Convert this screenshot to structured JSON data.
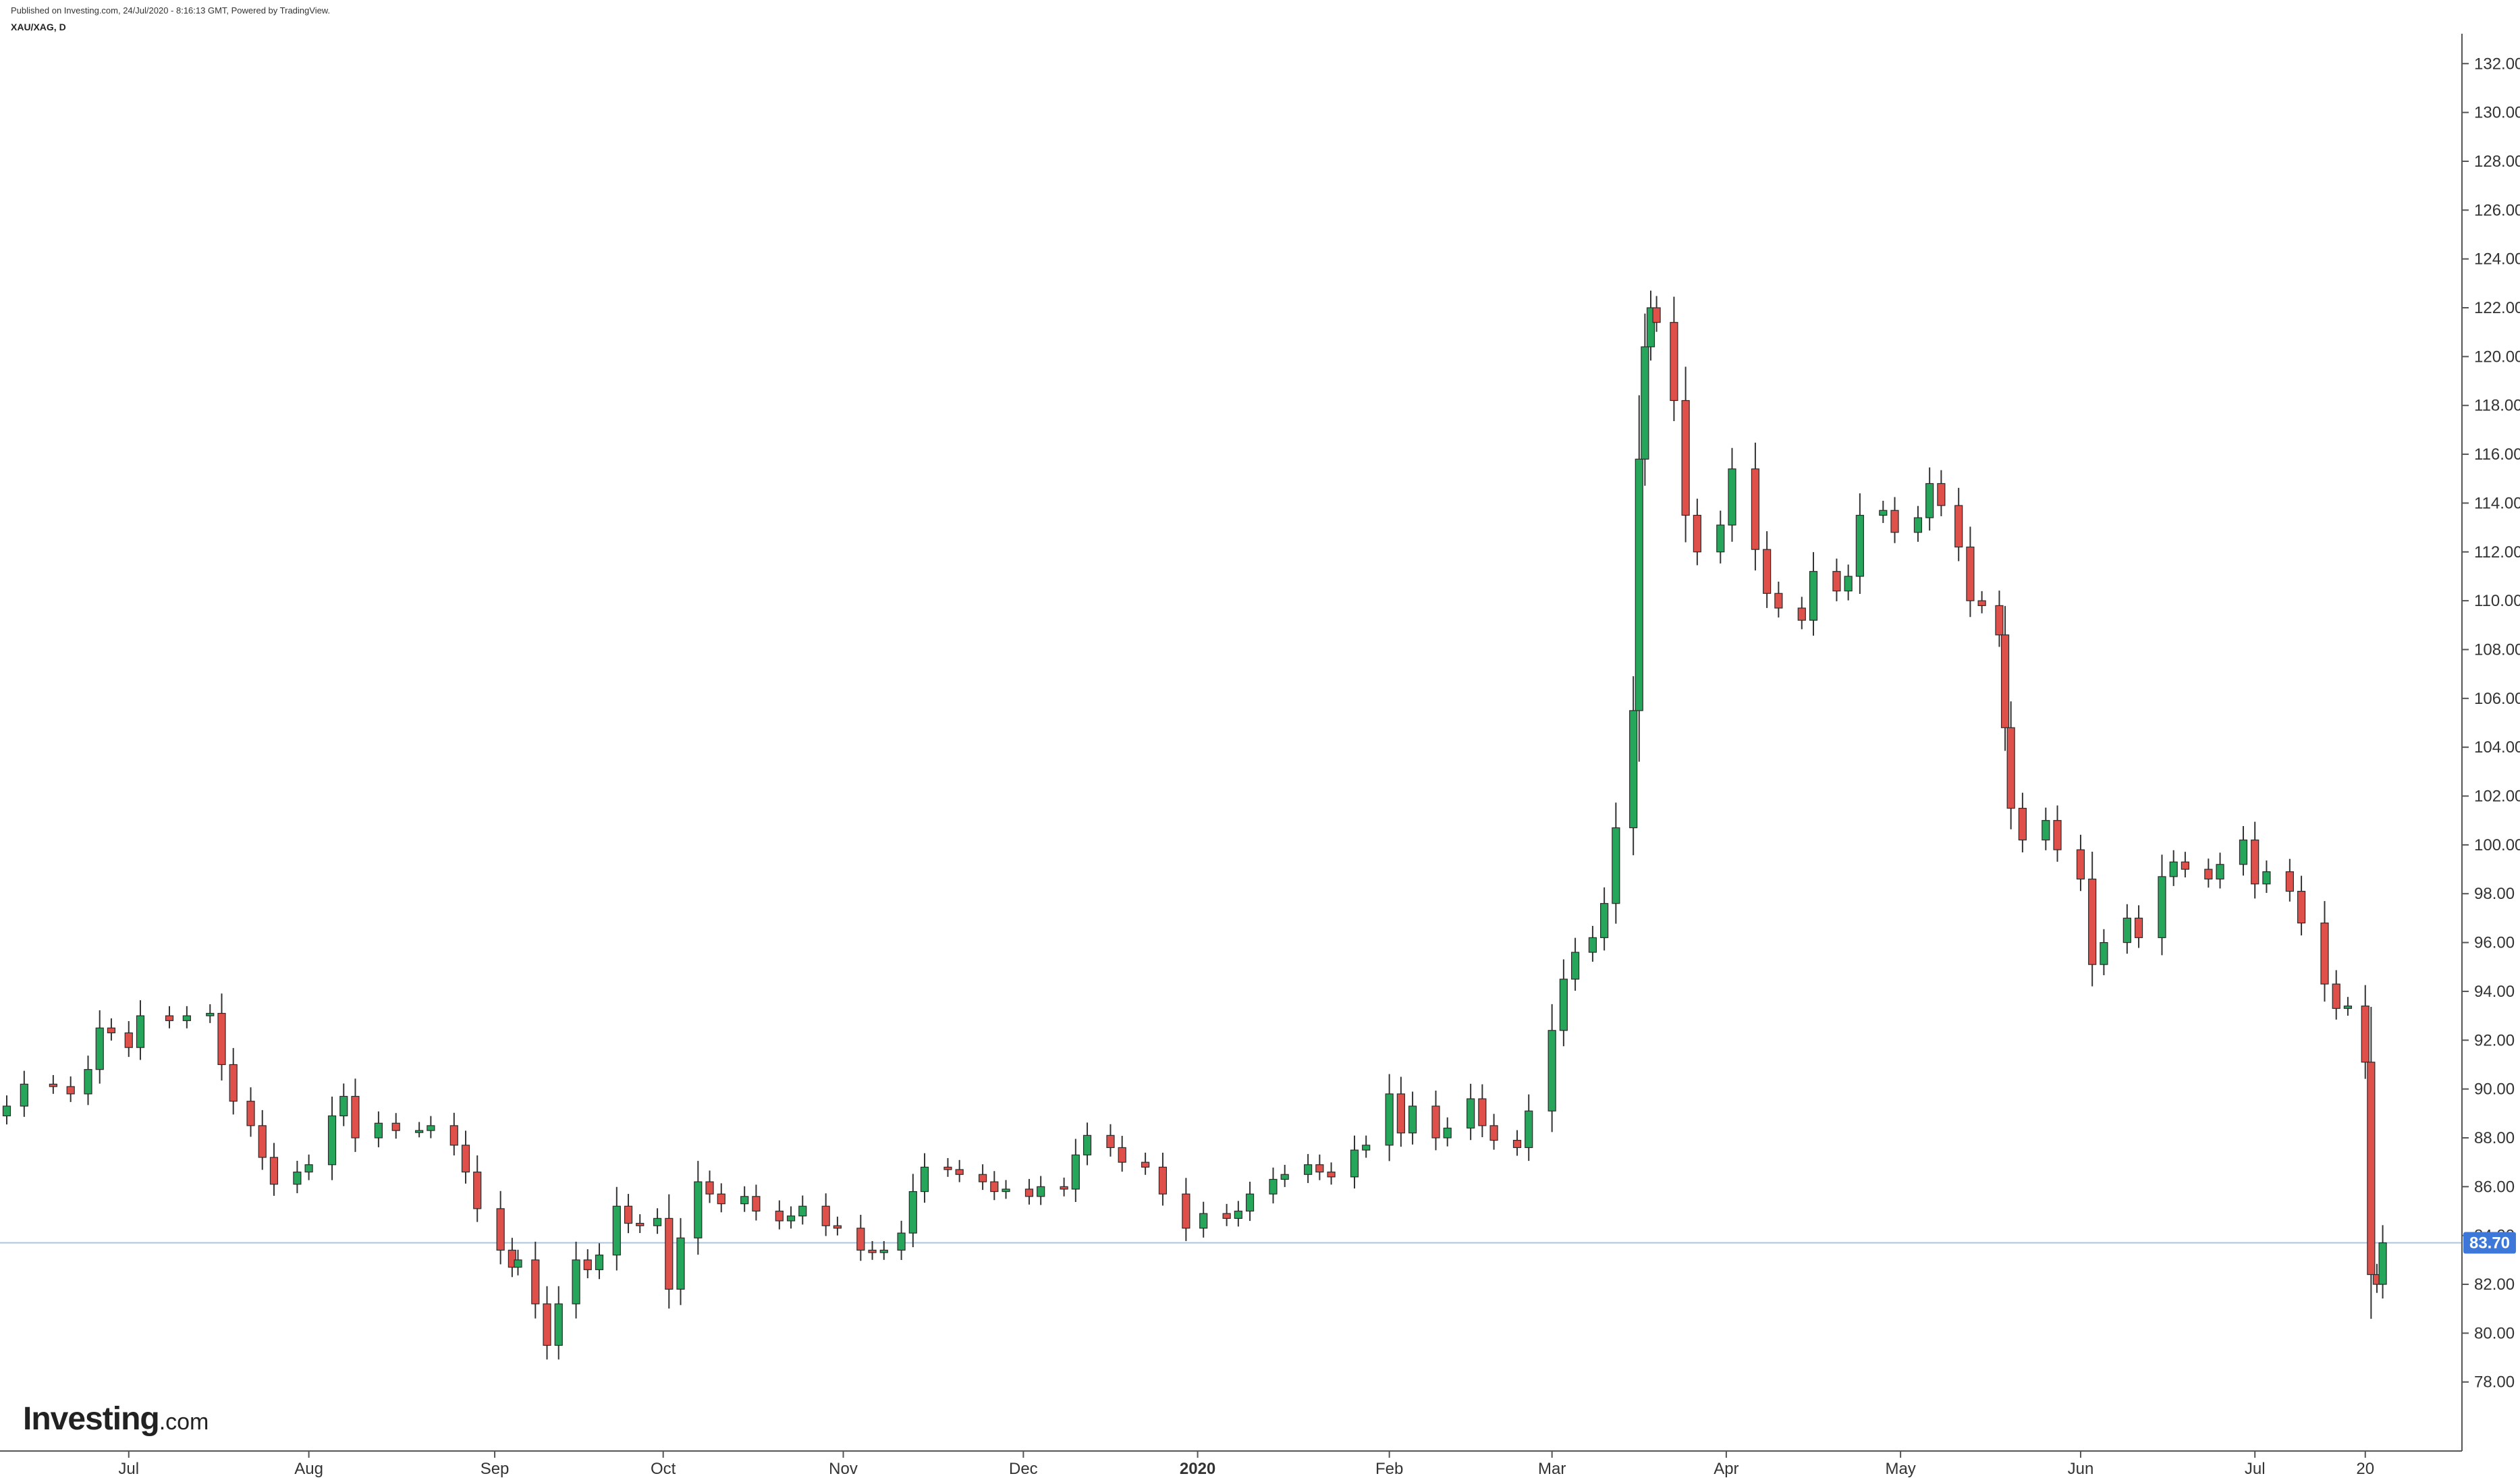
{
  "header": {
    "published": "Published on Investing.com, 24/Jul/2020 - 8:16:13 GMT, Powered by TradingView.",
    "symbol": "XAU/XAG, D"
  },
  "logo": {
    "brand": "Investing",
    "suffix": ".com"
  },
  "colors": {
    "up": "#26a65b",
    "down": "#e0504a",
    "wick": "#333333",
    "axis": "#555555",
    "last_price_line": "#a9c4e6",
    "last_price_tag": "#3d78d8"
  },
  "chart_data": {
    "type": "candlestick",
    "series_name": "XAU/XAG, D",
    "ylim": [
      76.5,
      133.5
    ],
    "y_ticks": [
      "132.00",
      "130.00",
      "128.00",
      "126.00",
      "124.00",
      "122.00",
      "120.00",
      "118.00",
      "116.00",
      "114.00",
      "112.00",
      "110.00",
      "108.00",
      "106.00",
      "104.00",
      "102.00",
      "100.00",
      "98.00",
      "96.00",
      "94.00",
      "92.00",
      "90.00",
      "88.00",
      "86.00",
      "84.00",
      "82.00",
      "80.00",
      "78.00"
    ],
    "x_range": [
      "2019-06-10",
      "2020-07-27"
    ],
    "x_ticks": [
      {
        "label": "Jul",
        "date": "2019-07-01"
      },
      {
        "label": "Aug",
        "date": "2019-08-01"
      },
      {
        "label": "Sep",
        "date": "2019-09-02"
      },
      {
        "label": "Oct",
        "date": "2019-10-01"
      },
      {
        "label": "Nov",
        "date": "2019-11-01"
      },
      {
        "label": "Dec",
        "date": "2019-12-02"
      },
      {
        "label": "2020",
        "date": "2020-01-01",
        "bold": true
      },
      {
        "label": "Feb",
        "date": "2020-02-03"
      },
      {
        "label": "Mar",
        "date": "2020-03-02"
      },
      {
        "label": "Apr",
        "date": "2020-04-01"
      },
      {
        "label": "May",
        "date": "2020-05-01"
      },
      {
        "label": "Jun",
        "date": "2020-06-01"
      },
      {
        "label": "Jul",
        "date": "2020-07-01"
      },
      {
        "label": "20",
        "date": "2020-07-20"
      }
    ],
    "last_price": 83.7,
    "last_price_label": "83.70",
    "closes": [
      {
        "date": "2019-06-10",
        "close": 89.3
      },
      {
        "date": "2019-06-13",
        "close": 90.2
      },
      {
        "date": "2019-06-18",
        "close": 90.1
      },
      {
        "date": "2019-06-21",
        "close": 89.8
      },
      {
        "date": "2019-06-24",
        "close": 90.8
      },
      {
        "date": "2019-06-26",
        "close": 92.5
      },
      {
        "date": "2019-06-28",
        "close": 92.3
      },
      {
        "date": "2019-07-01",
        "close": 91.7
      },
      {
        "date": "2019-07-03",
        "close": 93.0
      },
      {
        "date": "2019-07-08",
        "close": 92.8
      },
      {
        "date": "2019-07-11",
        "close": 93.0
      },
      {
        "date": "2019-07-15",
        "close": 93.1
      },
      {
        "date": "2019-07-17",
        "close": 91.0
      },
      {
        "date": "2019-07-19",
        "close": 89.5
      },
      {
        "date": "2019-07-22",
        "close": 88.5
      },
      {
        "date": "2019-07-24",
        "close": 87.2
      },
      {
        "date": "2019-07-26",
        "close": 86.1
      },
      {
        "date": "2019-07-30",
        "close": 86.6
      },
      {
        "date": "2019-08-01",
        "close": 86.9
      },
      {
        "date": "2019-08-05",
        "close": 88.9
      },
      {
        "date": "2019-08-07",
        "close": 89.7
      },
      {
        "date": "2019-08-09",
        "close": 88.0
      },
      {
        "date": "2019-08-13",
        "close": 88.6
      },
      {
        "date": "2019-08-16",
        "close": 88.3
      },
      {
        "date": "2019-08-20",
        "close": 88.3
      },
      {
        "date": "2019-08-22",
        "close": 88.5
      },
      {
        "date": "2019-08-26",
        "close": 87.7
      },
      {
        "date": "2019-08-28",
        "close": 86.6
      },
      {
        "date": "2019-08-30",
        "close": 85.1
      },
      {
        "date": "2019-09-03",
        "close": 83.4
      },
      {
        "date": "2019-09-05",
        "close": 82.7
      },
      {
        "date": "2019-09-06",
        "close": 83.0
      },
      {
        "date": "2019-09-09",
        "close": 81.2
      },
      {
        "date": "2019-09-11",
        "close": 79.5
      },
      {
        "date": "2019-09-13",
        "close": 81.2
      },
      {
        "date": "2019-09-16",
        "close": 83.0
      },
      {
        "date": "2019-09-18",
        "close": 82.6
      },
      {
        "date": "2019-09-20",
        "close": 83.2
      },
      {
        "date": "2019-09-23",
        "close": 85.2
      },
      {
        "date": "2019-09-25",
        "close": 84.5
      },
      {
        "date": "2019-09-27",
        "close": 84.4
      },
      {
        "date": "2019-09-30",
        "close": 84.7
      },
      {
        "date": "2019-10-02",
        "close": 81.8
      },
      {
        "date": "2019-10-04",
        "close": 83.9
      },
      {
        "date": "2019-10-07",
        "close": 86.2
      },
      {
        "date": "2019-10-09",
        "close": 85.7
      },
      {
        "date": "2019-10-11",
        "close": 85.3
      },
      {
        "date": "2019-10-15",
        "close": 85.6
      },
      {
        "date": "2019-10-17",
        "close": 85.0
      },
      {
        "date": "2019-10-21",
        "close": 84.6
      },
      {
        "date": "2019-10-23",
        "close": 84.8
      },
      {
        "date": "2019-10-25",
        "close": 85.2
      },
      {
        "date": "2019-10-29",
        "close": 84.4
      },
      {
        "date": "2019-10-31",
        "close": 84.3
      },
      {
        "date": "2019-11-04",
        "close": 83.4
      },
      {
        "date": "2019-11-06",
        "close": 83.3
      },
      {
        "date": "2019-11-08",
        "close": 83.4
      },
      {
        "date": "2019-11-11",
        "close": 84.1
      },
      {
        "date": "2019-11-13",
        "close": 85.8
      },
      {
        "date": "2019-11-15",
        "close": 86.8
      },
      {
        "date": "2019-11-19",
        "close": 86.7
      },
      {
        "date": "2019-11-21",
        "close": 86.5
      },
      {
        "date": "2019-11-25",
        "close": 86.2
      },
      {
        "date": "2019-11-27",
        "close": 85.8
      },
      {
        "date": "2019-11-29",
        "close": 85.9
      },
      {
        "date": "2019-12-03",
        "close": 85.6
      },
      {
        "date": "2019-12-05",
        "close": 86.0
      },
      {
        "date": "2019-12-09",
        "close": 85.9
      },
      {
        "date": "2019-12-11",
        "close": 87.3
      },
      {
        "date": "2019-12-13",
        "close": 88.1
      },
      {
        "date": "2019-12-17",
        "close": 87.6
      },
      {
        "date": "2019-12-19",
        "close": 87.0
      },
      {
        "date": "2019-12-23",
        "close": 86.8
      },
      {
        "date": "2019-12-26",
        "close": 85.7
      },
      {
        "date": "2019-12-30",
        "close": 84.3
      },
      {
        "date": "2020-01-02",
        "close": 84.9
      },
      {
        "date": "2020-01-06",
        "close": 84.7
      },
      {
        "date": "2020-01-08",
        "close": 85.0
      },
      {
        "date": "2020-01-10",
        "close": 85.7
      },
      {
        "date": "2020-01-14",
        "close": 86.3
      },
      {
        "date": "2020-01-16",
        "close": 86.5
      },
      {
        "date": "2020-01-20",
        "close": 86.9
      },
      {
        "date": "2020-01-22",
        "close": 86.6
      },
      {
        "date": "2020-01-24",
        "close": 86.4
      },
      {
        "date": "2020-01-28",
        "close": 87.5
      },
      {
        "date": "2020-01-30",
        "close": 87.7
      },
      {
        "date": "2020-02-03",
        "close": 89.8
      },
      {
        "date": "2020-02-05",
        "close": 88.2
      },
      {
        "date": "2020-02-07",
        "close": 89.3
      },
      {
        "date": "2020-02-11",
        "close": 88.0
      },
      {
        "date": "2020-02-13",
        "close": 88.4
      },
      {
        "date": "2020-02-17",
        "close": 89.6
      },
      {
        "date": "2020-02-19",
        "close": 88.5
      },
      {
        "date": "2020-02-21",
        "close": 87.9
      },
      {
        "date": "2020-02-25",
        "close": 87.6
      },
      {
        "date": "2020-02-27",
        "close": 89.1
      },
      {
        "date": "2020-03-02",
        "close": 92.4
      },
      {
        "date": "2020-03-04",
        "close": 94.5
      },
      {
        "date": "2020-03-06",
        "close": 95.6
      },
      {
        "date": "2020-03-09",
        "close": 96.2
      },
      {
        "date": "2020-03-11",
        "close": 97.6
      },
      {
        "date": "2020-03-13",
        "close": 100.7
      },
      {
        "date": "2020-03-16",
        "close": 105.5
      },
      {
        "date": "2020-03-17",
        "close": 115.8
      },
      {
        "date": "2020-03-18",
        "close": 120.4
      },
      {
        "date": "2020-03-19",
        "close": 122.0
      },
      {
        "date": "2020-03-20",
        "close": 121.4
      },
      {
        "date": "2020-03-23",
        "close": 118.2
      },
      {
        "date": "2020-03-25",
        "close": 113.5
      },
      {
        "date": "2020-03-27",
        "close": 112.0
      },
      {
        "date": "2020-03-31",
        "close": 113.1
      },
      {
        "date": "2020-04-02",
        "close": 115.4
      },
      {
        "date": "2020-04-06",
        "close": 112.1
      },
      {
        "date": "2020-04-08",
        "close": 110.3
      },
      {
        "date": "2020-04-10",
        "close": 109.7
      },
      {
        "date": "2020-04-14",
        "close": 109.2
      },
      {
        "date": "2020-04-16",
        "close": 111.2
      },
      {
        "date": "2020-04-20",
        "close": 110.4
      },
      {
        "date": "2020-04-22",
        "close": 111.0
      },
      {
        "date": "2020-04-24",
        "close": 113.5
      },
      {
        "date": "2020-04-28",
        "close": 113.7
      },
      {
        "date": "2020-04-30",
        "close": 112.8
      },
      {
        "date": "2020-05-04",
        "close": 113.4
      },
      {
        "date": "2020-05-06",
        "close": 114.8
      },
      {
        "date": "2020-05-08",
        "close": 113.9
      },
      {
        "date": "2020-05-11",
        "close": 112.2
      },
      {
        "date": "2020-05-13",
        "close": 110.0
      },
      {
        "date": "2020-05-15",
        "close": 109.8
      },
      {
        "date": "2020-05-18",
        "close": 108.6
      },
      {
        "date": "2020-05-19",
        "close": 104.8
      },
      {
        "date": "2020-05-20",
        "close": 101.5
      },
      {
        "date": "2020-05-22",
        "close": 100.2
      },
      {
        "date": "2020-05-26",
        "close": 101.0
      },
      {
        "date": "2020-05-28",
        "close": 99.8
      },
      {
        "date": "2020-06-01",
        "close": 98.6
      },
      {
        "date": "2020-06-03",
        "close": 95.1
      },
      {
        "date": "2020-06-05",
        "close": 96.0
      },
      {
        "date": "2020-06-09",
        "close": 97.0
      },
      {
        "date": "2020-06-11",
        "close": 96.2
      },
      {
        "date": "2020-06-15",
        "close": 98.7
      },
      {
        "date": "2020-06-17",
        "close": 99.3
      },
      {
        "date": "2020-06-19",
        "close": 99.0
      },
      {
        "date": "2020-06-23",
        "close": 98.6
      },
      {
        "date": "2020-06-25",
        "close": 99.2
      },
      {
        "date": "2020-06-29",
        "close": 100.2
      },
      {
        "date": "2020-07-01",
        "close": 98.4
      },
      {
        "date": "2020-07-03",
        "close": 98.9
      },
      {
        "date": "2020-07-07",
        "close": 98.1
      },
      {
        "date": "2020-07-09",
        "close": 96.8
      },
      {
        "date": "2020-07-13",
        "close": 94.3
      },
      {
        "date": "2020-07-15",
        "close": 93.3
      },
      {
        "date": "2020-07-17",
        "close": 93.4
      },
      {
        "date": "2020-07-20",
        "close": 91.1
      },
      {
        "date": "2020-07-21",
        "close": 82.4
      },
      {
        "date": "2020-07-22",
        "close": 82.0
      },
      {
        "date": "2020-07-23",
        "close": 83.7
      }
    ]
  }
}
